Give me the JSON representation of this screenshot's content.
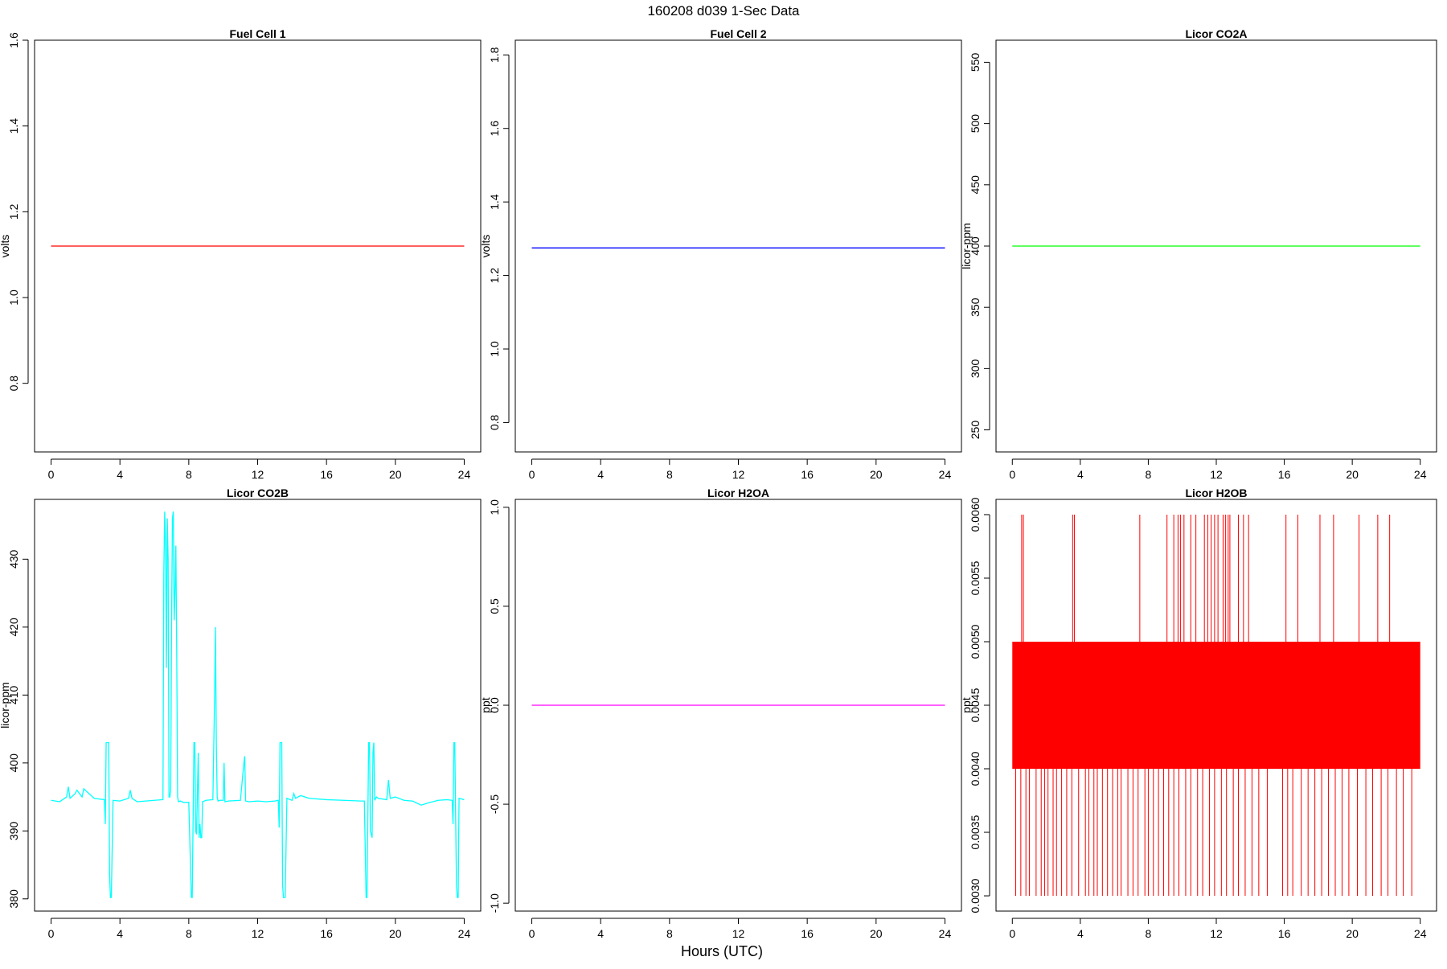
{
  "figure": {
    "title": "160208   d039   1-Sec Data",
    "xlabel": "Hours (UTC)"
  },
  "chart_data": [
    {
      "type": "line",
      "title": "Fuel Cell 1",
      "ylabel": "volts",
      "color": "#ff0000",
      "xlim": [
        0,
        24
      ],
      "ylim": [
        0.64,
        1.6
      ],
      "xticks": [
        "0",
        "4",
        "8",
        "12",
        "16",
        "20",
        "24"
      ],
      "yticks": [
        {
          "v": 0.8,
          "label": "0.8"
        },
        {
          "v": 1.0,
          "label": "1.0"
        },
        {
          "v": 1.2,
          "label": "1.2"
        },
        {
          "v": 1.4,
          "label": "1.4"
        },
        {
          "v": 1.6,
          "label": "1.6"
        }
      ],
      "series": [
        {
          "x": [
            0,
            24
          ],
          "y": [
            1.12,
            1.12
          ]
        }
      ]
    },
    {
      "type": "line",
      "title": "Fuel Cell 2",
      "ylabel": "volts",
      "color": "#0000ff",
      "xlim": [
        0,
        24
      ],
      "ylim": [
        0.72,
        1.84
      ],
      "xticks": [
        "0",
        "4",
        "8",
        "12",
        "16",
        "20",
        "24"
      ],
      "yticks": [
        {
          "v": 0.8,
          "label": "0.8"
        },
        {
          "v": 1.0,
          "label": "1.0"
        },
        {
          "v": 1.2,
          "label": "1.2"
        },
        {
          "v": 1.4,
          "label": "1.4"
        },
        {
          "v": 1.6,
          "label": "1.6"
        },
        {
          "v": 1.8,
          "label": "1.8"
        }
      ],
      "series": [
        {
          "x": [
            0,
            24
          ],
          "y": [
            1.275,
            1.275
          ]
        }
      ]
    },
    {
      "type": "line",
      "title": "Licor CO2A",
      "ylabel": "licor-ppm",
      "color": "#00ff00",
      "xlim": [
        0,
        24
      ],
      "ylim": [
        232,
        568
      ],
      "xticks": [
        "0",
        "4",
        "8",
        "12",
        "16",
        "20",
        "24"
      ],
      "yticks": [
        {
          "v": 250,
          "label": "250"
        },
        {
          "v": 300,
          "label": "300"
        },
        {
          "v": 350,
          "label": "350"
        },
        {
          "v": 400,
          "label": "400"
        },
        {
          "v": 450,
          "label": "450"
        },
        {
          "v": 500,
          "label": "500"
        },
        {
          "v": 550,
          "label": "550"
        }
      ],
      "series": [
        {
          "x": [
            0,
            24
          ],
          "y": [
            400,
            400
          ]
        }
      ]
    },
    {
      "type": "line",
      "title": "Licor CO2B",
      "ylabel": "licor-ppm",
      "color": "#00ffff",
      "xlim": [
        0,
        24
      ],
      "ylim": [
        378.2,
        438.8
      ],
      "xticks": [
        "0",
        "4",
        "8",
        "12",
        "16",
        "20",
        "24"
      ],
      "yticks": [
        {
          "v": 380,
          "label": "380"
        },
        {
          "v": 390,
          "label": "390"
        },
        {
          "v": 400,
          "label": "400"
        },
        {
          "v": 410,
          "label": "410"
        },
        {
          "v": 420,
          "label": "420"
        },
        {
          "v": 430,
          "label": "430"
        }
      ],
      "series": [
        {
          "x": [
            0,
            0.5,
            0.9,
            1.0,
            1.1,
            1.4,
            1.5,
            1.8,
            1.9,
            2.5,
            3.1,
            3.15,
            3.2,
            3.35,
            3.4,
            3.45,
            3.5,
            3.6,
            4.0,
            4.5,
            4.6,
            4.7,
            5.0,
            5.5,
            6.0,
            6.5,
            6.55,
            6.6,
            6.65,
            6.7,
            6.75,
            6.8,
            6.85,
            6.9,
            6.95,
            7.0,
            7.05,
            7.1,
            7.15,
            7.2,
            7.25,
            7.3,
            7.35,
            7.4,
            7.5,
            7.7,
            8.0,
            8.15,
            8.2,
            8.3,
            8.35,
            8.4,
            8.45,
            8.55,
            8.6,
            8.65,
            8.7,
            8.75,
            8.8,
            9.0,
            9.4,
            9.5,
            9.55,
            9.6,
            9.65,
            9.7,
            9.8,
            10.0,
            10.05,
            10.1,
            10.3,
            11.0,
            11.2,
            11.25,
            11.3,
            11.5,
            12.0,
            12.5,
            13.0,
            13.2,
            13.25,
            13.3,
            13.4,
            13.45,
            13.5,
            13.6,
            13.7,
            14.0,
            14.1,
            14.2,
            14.5,
            15.0,
            16.0,
            17.0,
            18.0,
            18.2,
            18.3,
            18.35,
            18.45,
            18.5,
            18.55,
            18.65,
            18.7,
            18.75,
            18.8,
            18.9,
            19.0,
            19.5,
            19.6,
            19.7,
            20.0,
            20.5,
            21.0,
            21.5,
            22.0,
            22.5,
            23.0,
            23.3,
            23.35,
            23.4,
            23.45,
            23.55,
            23.6,
            23.65,
            23.7,
            24.0
          ],
          "y": [
            394.5,
            394.3,
            395.0,
            396.5,
            394.8,
            395.5,
            396.0,
            395.0,
            396.2,
            394.8,
            394.6,
            391.0,
            403.0,
            403.0,
            383.5,
            380.2,
            380.2,
            394.5,
            394.4,
            394.8,
            396.0,
            394.8,
            394.3,
            394.4,
            394.5,
            394.6,
            428.0,
            437.0,
            432.0,
            414.0,
            436.0,
            430.0,
            395.0,
            395.0,
            396.0,
            420.0,
            436.0,
            437.0,
            421.0,
            425.0,
            432.0,
            416.0,
            395.0,
            394.3,
            394.4,
            394.2,
            394.2,
            380.2,
            380.2,
            403.0,
            403.0,
            390.0,
            389.5,
            401.5,
            389.0,
            391.0,
            389.0,
            389.0,
            394.3,
            394.5,
            394.6,
            410.0,
            420.0,
            403.0,
            395.0,
            394.4,
            394.5,
            394.5,
            400.0,
            394.3,
            394.4,
            394.5,
            400.0,
            401.0,
            394.4,
            394.3,
            394.4,
            394.3,
            394.4,
            394.5,
            390.5,
            403.0,
            403.0,
            382.0,
            380.2,
            380.2,
            394.8,
            394.5,
            395.5,
            394.8,
            395.2,
            394.8,
            394.6,
            394.5,
            394.4,
            394.4,
            380.2,
            380.2,
            403.0,
            403.0,
            390.0,
            389.0,
            401.5,
            403.0,
            394.5,
            395.0,
            394.8,
            394.6,
            397.5,
            394.8,
            395.0,
            394.5,
            394.4,
            393.8,
            394.2,
            394.5,
            394.6,
            394.5,
            391.0,
            403.0,
            403.0,
            382.0,
            380.2,
            380.2,
            394.8,
            394.6
          ]
        }
      ]
    },
    {
      "type": "line",
      "title": "Licor H2OA",
      "ylabel": "ppt",
      "color": "#ff00ff",
      "xlim": [
        0,
        24
      ],
      "ylim": [
        -1.04,
        1.04
      ],
      "xticks": [
        "0",
        "4",
        "8",
        "12",
        "16",
        "20",
        "24"
      ],
      "yticks": [
        {
          "v": -1.0,
          "label": "-1.0"
        },
        {
          "v": -0.5,
          "label": "-0.5"
        },
        {
          "v": 0.0,
          "label": "0.0"
        },
        {
          "v": 0.5,
          "label": "0.5"
        },
        {
          "v": 1.0,
          "label": "1.0"
        }
      ],
      "series": [
        {
          "x": [
            0,
            24
          ],
          "y": [
            0.0,
            0.0
          ]
        }
      ]
    },
    {
      "type": "line",
      "title": "Licor H2OB",
      "ylabel": "ppt",
      "color": "#ff0000",
      "xlim": [
        0,
        24
      ],
      "ylim": [
        0.00288,
        0.00612
      ],
      "xticks": [
        "0",
        "4",
        "8",
        "12",
        "16",
        "20",
        "24"
      ],
      "yticks": [
        {
          "v": 0.003,
          "label": "0.0030"
        },
        {
          "v": 0.0035,
          "label": "0.0035"
        },
        {
          "v": 0.004,
          "label": "0.0040"
        },
        {
          "v": 0.0045,
          "label": "0.0045"
        },
        {
          "v": 0.005,
          "label": "0.0050"
        },
        {
          "v": 0.0055,
          "label": "0.0055"
        },
        {
          "v": 0.006,
          "label": "0.0060"
        }
      ],
      "band": {
        "x": [
          0,
          24
        ],
        "y": [
          0.004,
          0.005
        ]
      },
      "spikes_up": {
        "to": 0.006,
        "x": [
          0.55,
          0.65,
          3.55,
          3.65,
          7.5,
          9.1,
          9.5,
          9.75,
          9.9,
          10.1,
          10.5,
          10.8,
          11.3,
          11.5,
          11.7,
          11.9,
          12.1,
          12.4,
          12.55,
          12.7,
          12.8,
          13.3,
          13.6,
          13.9,
          16.1,
          16.8,
          18.1,
          18.9,
          20.4,
          21.5,
          22.2
        ]
      },
      "spikes_down": {
        "to": 0.003,
        "x": [
          0.2,
          0.5,
          0.8,
          1.0,
          1.4,
          1.7,
          1.9,
          2.1,
          2.4,
          2.6,
          2.9,
          3.2,
          3.5,
          3.9,
          4.3,
          4.5,
          4.8,
          5.0,
          5.3,
          5.6,
          5.9,
          6.2,
          6.4,
          6.8,
          7.1,
          7.4,
          7.8,
          8.0,
          8.3,
          8.6,
          8.9,
          9.2,
          9.5,
          9.8,
          10.2,
          10.5,
          10.9,
          11.2,
          11.6,
          11.9,
          12.3,
          12.6,
          13.0,
          13.3,
          13.7,
          14.1,
          14.5,
          15.0,
          15.9,
          16.2,
          16.5,
          17.0,
          17.4,
          17.8,
          18.2,
          18.6,
          19.0,
          19.4,
          19.8,
          20.3,
          20.8,
          21.2,
          21.7,
          22.1,
          22.6,
          23.0,
          23.5
        ]
      }
    }
  ]
}
